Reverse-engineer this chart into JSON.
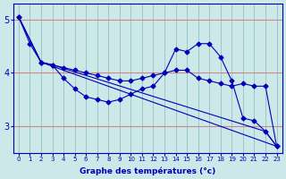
{
  "xlabel": "Graphe des températures (°c)",
  "bg_color": "#cce8e8",
  "line_color": "#0000bb",
  "grid_color_v": "#88bbbb",
  "grid_color_h": "#cc8888",
  "xlim": [
    -0.5,
    23.5
  ],
  "ylim": [
    2.5,
    5.3
  ],
  "ytick_positions": [
    3,
    4,
    5
  ],
  "ytick_labels": [
    "3",
    "4",
    "5"
  ],
  "xticks": [
    0,
    1,
    2,
    3,
    4,
    5,
    6,
    7,
    8,
    9,
    10,
    11,
    12,
    13,
    14,
    15,
    16,
    17,
    18,
    19,
    20,
    21,
    22,
    23
  ],
  "series": [
    {
      "x": [
        0,
        1,
        2,
        3,
        4,
        5,
        6,
        7,
        8,
        9,
        10,
        11,
        12,
        13,
        14,
        15,
        16,
        17,
        18,
        19,
        20,
        21,
        22,
        23
      ],
      "y": [
        5.05,
        4.55,
        4.2,
        4.15,
        3.9,
        3.7,
        3.55,
        3.5,
        3.45,
        3.5,
        3.6,
        3.7,
        3.75,
        4.0,
        4.45,
        4.4,
        4.55,
        4.55,
        4.3,
        3.85,
        3.15,
        3.1,
        2.9,
        2.62
      ]
    },
    {
      "x": [
        0,
        2,
        3,
        22,
        23
      ],
      "y": [
        5.05,
        4.2,
        4.15,
        2.9,
        2.62
      ]
    },
    {
      "x": [
        0,
        2,
        23
      ],
      "y": [
        5.05,
        4.2,
        2.62
      ]
    },
    {
      "x": [
        0,
        2,
        3,
        4,
        5,
        6,
        7,
        8,
        9,
        10,
        11,
        12,
        13,
        14,
        15,
        16,
        17,
        18,
        19,
        20,
        21,
        22,
        23
      ],
      "y": [
        5.05,
        4.2,
        4.15,
        4.1,
        4.05,
        4.0,
        3.95,
        3.9,
        3.85,
        3.85,
        3.9,
        3.95,
        4.0,
        4.05,
        4.05,
        3.9,
        3.85,
        3.8,
        3.75,
        3.8,
        3.75,
        3.75,
        2.62
      ]
    }
  ]
}
